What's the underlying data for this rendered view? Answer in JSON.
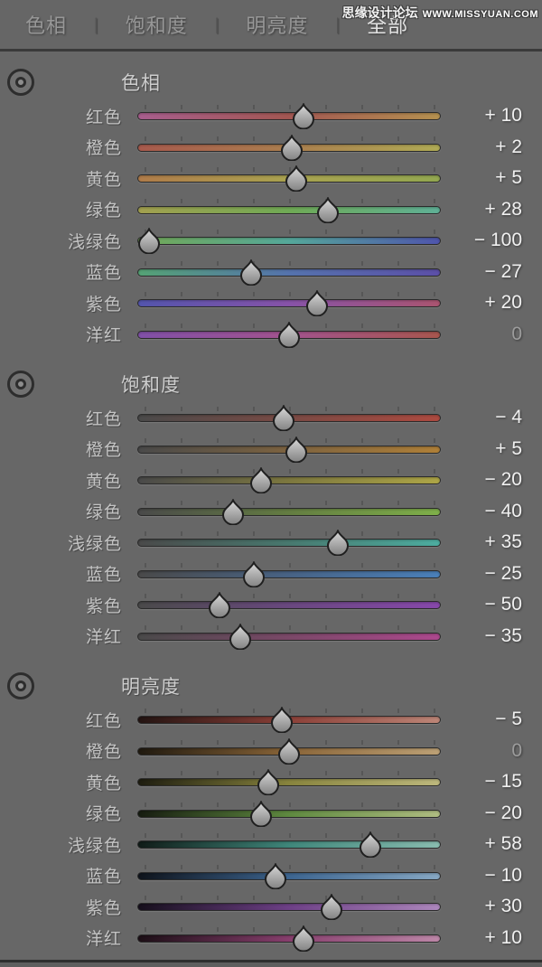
{
  "header": {
    "tabs": [
      {
        "label": "色相",
        "selected": false
      },
      {
        "label": "饱和度",
        "selected": false
      },
      {
        "label": "明亮度",
        "selected": false
      },
      {
        "label": "全部",
        "selected": true
      }
    ],
    "separator": "|",
    "watermark": {
      "site_name": "思缘设计论坛",
      "site_url": "WWW.MISSYUAN.COM"
    }
  },
  "slider": {
    "min": -100,
    "max": 100,
    "tick_count": 9
  },
  "colors": {
    "panel_bg": "#676767",
    "divider": "#3a3a3a",
    "label_text": "#c3c3c3",
    "value_text": "#f0f0f0",
    "value_zero_text": "#9c9c9c"
  },
  "sections": [
    {
      "title": "色相",
      "rows": [
        {
          "label": "红色",
          "value": 10,
          "display": "+ 10",
          "gradient": [
            "#a85e8e",
            "#a35752",
            "#b5914f"
          ]
        },
        {
          "label": "橙色",
          "value": 2,
          "display": "+ 2",
          "gradient": [
            "#a85a4d",
            "#ab7e4e",
            "#b0ab55"
          ]
        },
        {
          "label": "黄色",
          "value": 5,
          "display": "+ 5",
          "gradient": [
            "#b07c4a",
            "#aaa350",
            "#93a851"
          ]
        },
        {
          "label": "绿色",
          "value": 28,
          "display": "+ 28",
          "gradient": [
            "#a3a04f",
            "#6faa55",
            "#5fb096"
          ]
        },
        {
          "label": "浅绿色",
          "value": -100,
          "display": "− 100",
          "gradient": [
            "#73a855",
            "#55a89a",
            "#4f55ad"
          ]
        },
        {
          "label": "蓝色",
          "value": -27,
          "display": "− 27",
          "gradient": [
            "#55a375",
            "#5573ad",
            "#5c4fa8"
          ]
        },
        {
          "label": "紫色",
          "value": 20,
          "display": "+ 20",
          "gradient": [
            "#5355ad",
            "#8753a8",
            "#aa5570"
          ]
        },
        {
          "label": "洋红",
          "value": 0,
          "display": "0",
          "gradient": [
            "#8150a8",
            "#a3538e",
            "#a8564e"
          ]
        }
      ]
    },
    {
      "title": "饱和度",
      "rows": [
        {
          "label": "红色",
          "value": -4,
          "display": "− 4",
          "gradient": [
            "#4a4a4a",
            "#7a4a44",
            "#ad4a40"
          ]
        },
        {
          "label": "橙色",
          "value": 5,
          "display": "+ 5",
          "gradient": [
            "#4a4a4a",
            "#7d6340",
            "#b08038"
          ]
        },
        {
          "label": "黄色",
          "value": -20,
          "display": "− 20",
          "gradient": [
            "#4a4a4a",
            "#7d783f",
            "#aea647"
          ]
        },
        {
          "label": "绿色",
          "value": -40,
          "display": "− 40",
          "gradient": [
            "#4a4a4a",
            "#647d42",
            "#7fb04a"
          ]
        },
        {
          "label": "浅绿色",
          "value": 35,
          "display": "+ 35",
          "gradient": [
            "#4a4a4a",
            "#48796f",
            "#4dada0"
          ]
        },
        {
          "label": "蓝色",
          "value": -25,
          "display": "− 25",
          "gradient": [
            "#4a4a4a",
            "#486385",
            "#4a80ba"
          ]
        },
        {
          "label": "紫色",
          "value": -50,
          "display": "− 50",
          "gradient": [
            "#4a4a4a",
            "#69487f",
            "#8748ab"
          ]
        },
        {
          "label": "洋红",
          "value": -35,
          "display": "− 35",
          "gradient": [
            "#4a4a4a",
            "#7b4868",
            "#ad488e"
          ]
        }
      ]
    },
    {
      "title": "明亮度",
      "rows": [
        {
          "label": "红色",
          "value": -5,
          "display": "− 5",
          "gradient": [
            "#231412",
            "#8c4038",
            "#bd8678"
          ]
        },
        {
          "label": "橙色",
          "value": 0,
          "display": "0",
          "gradient": [
            "#201a10",
            "#8a6538",
            "#bda176"
          ]
        },
        {
          "label": "黄色",
          "value": -15,
          "display": "− 15",
          "gradient": [
            "#1e1d10",
            "#88843e",
            "#bdb87d"
          ]
        },
        {
          "label": "绿色",
          "value": -20,
          "display": "− 20",
          "gradient": [
            "#161c10",
            "#5f8a40",
            "#b0bd82"
          ]
        },
        {
          "label": "浅绿色",
          "value": 58,
          "display": "+ 58",
          "gradient": [
            "#101c18",
            "#3f877b",
            "#8abdb0"
          ]
        },
        {
          "label": "蓝色",
          "value": -10,
          "display": "− 10",
          "gradient": [
            "#0f141c",
            "#3d6590",
            "#87a8c4"
          ]
        },
        {
          "label": "紫色",
          "value": 30,
          "display": "+ 30",
          "gradient": [
            "#160f1c",
            "#6e4087",
            "#ad87bd"
          ]
        },
        {
          "label": "洋红",
          "value": 10,
          "display": "+ 10",
          "gradient": [
            "#1c0f16",
            "#883f6e",
            "#bd87a8"
          ]
        }
      ]
    }
  ]
}
